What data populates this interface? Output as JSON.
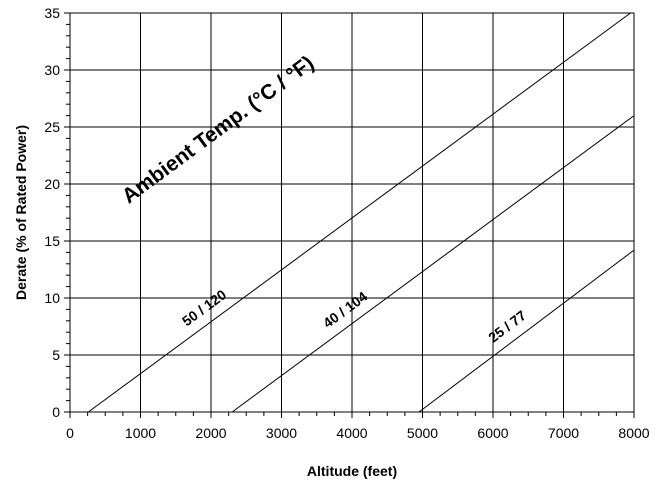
{
  "chart_data": {
    "type": "line",
    "title": "",
    "xlabel": "Altitude (feet)",
    "ylabel": "Derate (% of Rated Power)",
    "xlim": [
      0,
      8000
    ],
    "ylim": [
      0,
      35
    ],
    "xticks": [
      0,
      1000,
      2000,
      3000,
      4000,
      5000,
      6000,
      7000,
      8000
    ],
    "yticks": [
      0,
      5,
      10,
      15,
      20,
      25,
      30,
      35
    ],
    "grid": true,
    "annotation": "Ambient Temp. (°C / °F)",
    "series": [
      {
        "label": "50 / 120",
        "x": [
          260,
          7950
        ],
        "y": [
          0,
          35
        ]
      },
      {
        "label": "40 / 104",
        "x": [
          2300,
          8000
        ],
        "y": [
          0,
          26
        ]
      },
      {
        "label": "25 / 77",
        "x": [
          4950,
          8000
        ],
        "y": [
          0,
          14.2
        ]
      }
    ],
    "line_color": "#000000",
    "grid_color": "#000000"
  }
}
